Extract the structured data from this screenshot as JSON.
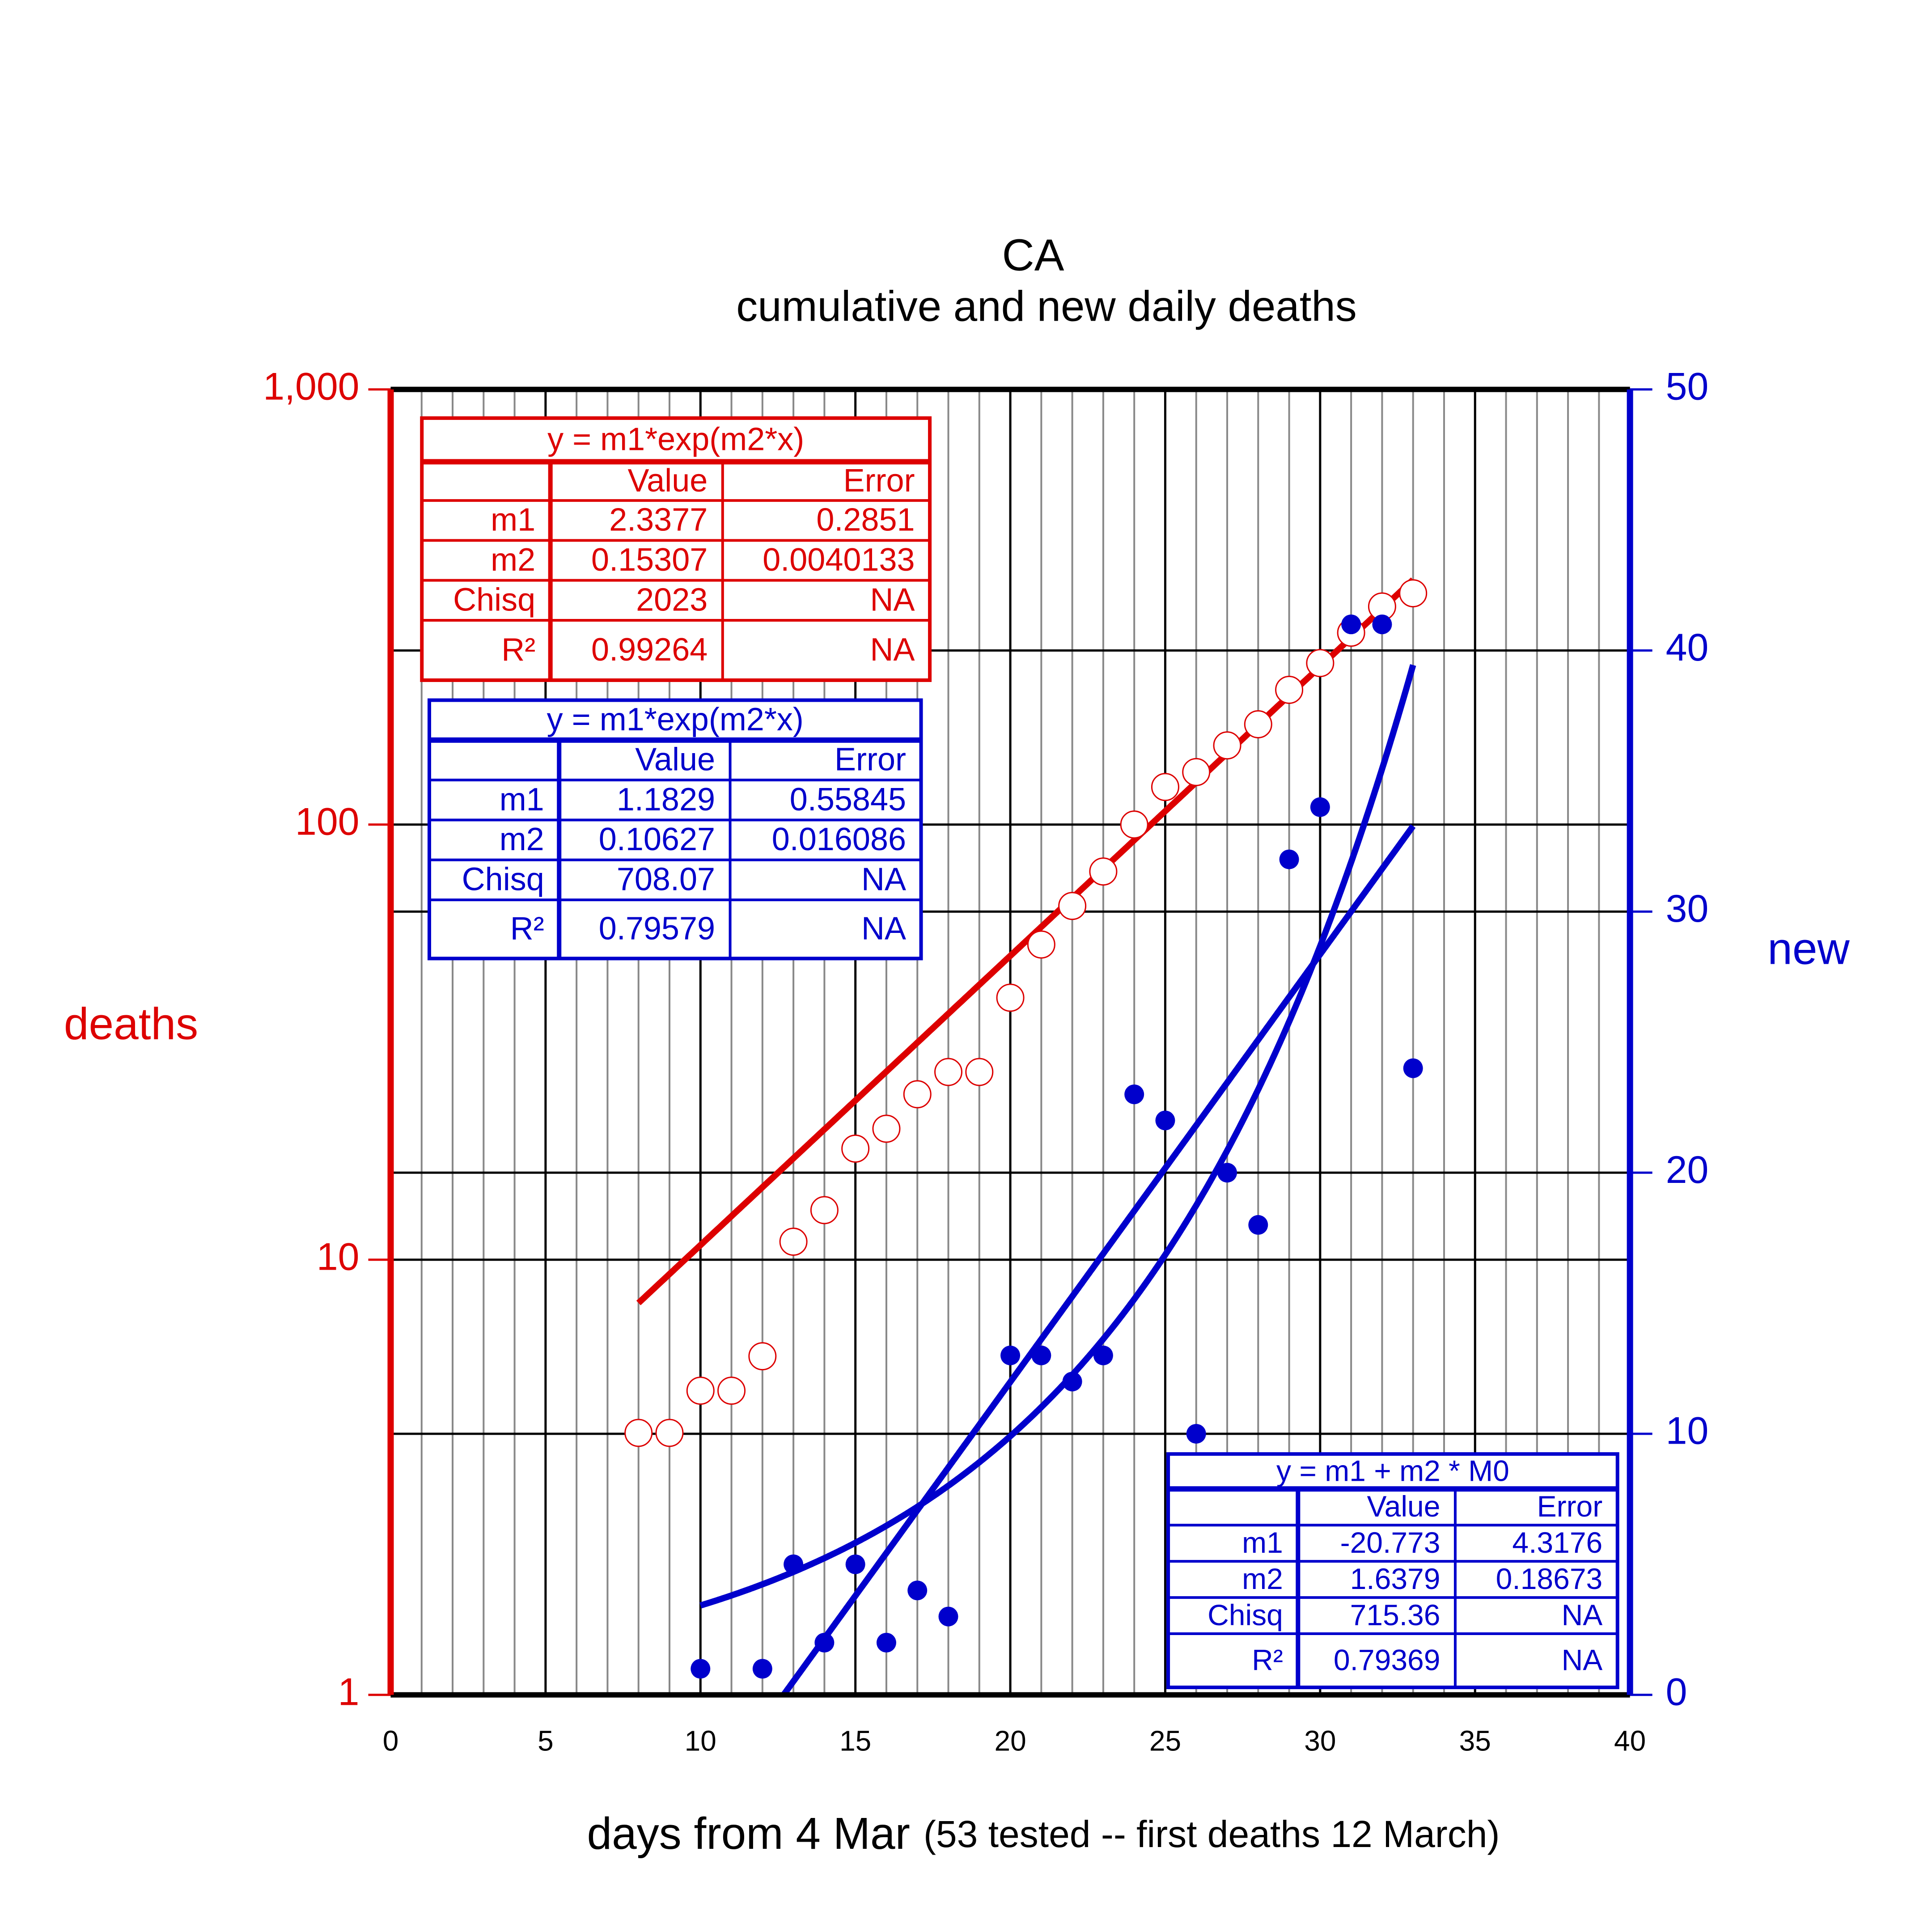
{
  "chart_data": {
    "type": "scatter",
    "title": "CA",
    "subtitle": "cumulative and new daily deaths",
    "xlabel": "days from 4 Mar",
    "xlabel_note": "(53 tested -- first deaths 12 March)",
    "ylabel": "deaths",
    "y2label": "new",
    "xlim": [
      0,
      40
    ],
    "xticks": [
      0,
      5,
      10,
      15,
      20,
      25,
      30,
      35,
      40
    ],
    "xminorticks": [
      0,
      1,
      2,
      3,
      4,
      5,
      6,
      7,
      8,
      9,
      10,
      11,
      12,
      13,
      14,
      15,
      16,
      17,
      18,
      19,
      20,
      21,
      22,
      23,
      24,
      25,
      26,
      27,
      28,
      29,
      30,
      31,
      32,
      33,
      34,
      35,
      36,
      37,
      38,
      39,
      40
    ],
    "ylim": [
      1,
      1000
    ],
    "ylog": true,
    "yticks": [
      1,
      10,
      100,
      {
        "value": 1000,
        "label": "1,000"
      }
    ],
    "y2lim": [
      0,
      50
    ],
    "y2ticks": [
      0,
      10,
      20,
      30,
      40,
      50
    ],
    "grid": true,
    "series": [
      {
        "color": "#dd0000",
        "marker": "open",
        "x": [
          8,
          9,
          10,
          11,
          12,
          13,
          14,
          15,
          16,
          17,
          18,
          19,
          20,
          21,
          22,
          23,
          24,
          25,
          26,
          27,
          28,
          29,
          30,
          31,
          32,
          33
        ],
        "values": [
          4,
          4,
          5,
          5,
          6,
          11,
          13,
          18,
          20,
          24,
          27,
          27,
          40,
          53,
          65,
          78,
          100,
          122,
          132,
          152,
          170,
          204,
          235,
          276,
          317,
          340
        ]
      },
      {
        "color": "#0000cc",
        "marker": "filled",
        "axis": "y2",
        "x": [
          10,
          12,
          13,
          14,
          15,
          16,
          17,
          18,
          20,
          21,
          22,
          23,
          24,
          25,
          26,
          27,
          28,
          29,
          30,
          31,
          32,
          33
        ],
        "values": [
          1,
          1,
          5,
          2,
          5,
          2,
          4,
          3,
          13,
          13,
          12,
          13,
          23,
          22,
          10,
          20,
          18,
          32,
          34,
          41,
          41,
          24
        ]
      }
    ],
    "fits": [
      {
        "title": "y = m1*exp(m2*x)",
        "model": "exp",
        "series": 0,
        "color": "#dd0000",
        "columns": [
          "Value",
          "Error"
        ],
        "rows": [
          {
            "name": "m1",
            "value": 2.3377,
            "error": 0.2851
          },
          {
            "name": "m2",
            "value": 0.15307,
            "error": 0.0040133
          },
          {
            "name": "Chisq",
            "value": 2023,
            "error": "NA"
          },
          {
            "name": "R²",
            "value": 0.99264,
            "error": "NA"
          }
        ]
      },
      {
        "title": "y = m1*exp(m2*x)",
        "model": "exp",
        "series": 1,
        "color": "#0000cc",
        "columns": [
          "Value",
          "Error"
        ],
        "rows": [
          {
            "name": "m1",
            "value": 1.1829,
            "error": 0.55845
          },
          {
            "name": "m2",
            "value": 0.10627,
            "error": 0.016086
          },
          {
            "name": "Chisq",
            "value": 708.07,
            "error": "NA"
          },
          {
            "name": "R²",
            "value": 0.79579,
            "error": "NA"
          }
        ]
      },
      {
        "title": "y = m1 + m2 * M0",
        "model": "linear",
        "series": 1,
        "color": "#0000cc",
        "columns": [
          "Value",
          "Error"
        ],
        "rows": [
          {
            "name": "m1",
            "value": -20.773,
            "error": 4.3176
          },
          {
            "name": "m2",
            "value": 1.6379,
            "error": 0.18673
          },
          {
            "name": "Chisq",
            "value": 715.36,
            "error": "NA"
          },
          {
            "name": "R²",
            "value": 0.79369,
            "error": "NA"
          }
        ]
      }
    ]
  }
}
